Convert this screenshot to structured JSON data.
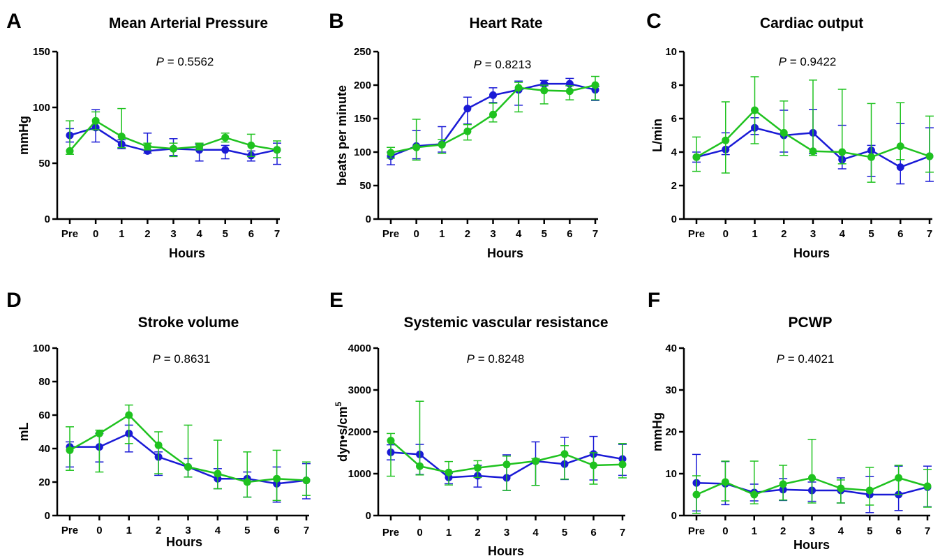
{
  "colors": {
    "series_blue": "#1a1ad6",
    "series_green": "#1fc21f",
    "axis": "#000000"
  },
  "chart_data": [
    {
      "panel": "A",
      "type": "line",
      "title": "Mean Arterial Pressure",
      "p_prefix": "P",
      "p_value": " = 0.5562",
      "xlabel": "Hours",
      "ylabel": "mmHg",
      "categories": [
        "Pre",
        "0",
        "1",
        "2",
        "3",
        "4",
        "5",
        "6",
        "7"
      ],
      "ylim": [
        0,
        150
      ],
      "yticks": [
        0,
        50,
        100,
        150
      ],
      "series": [
        {
          "color": "#1a1ad6",
          "values": [
            75,
            82,
            67,
            61,
            63,
            62,
            62,
            57,
            62
          ],
          "err_up": [
            6,
            16,
            4,
            16,
            9,
            5,
            4,
            4,
            6
          ],
          "err_down": [
            6,
            13,
            4,
            2,
            6,
            10,
            8,
            5,
            13
          ]
        },
        {
          "color": "#1fc21f",
          "values": [
            61,
            88,
            74,
            65,
            63,
            65,
            73,
            66,
            62
          ],
          "err_up": [
            27,
            8,
            25,
            3,
            5,
            3,
            4,
            10,
            8
          ],
          "err_down": [
            3,
            8,
            10,
            3,
            7,
            3,
            4,
            10,
            7
          ]
        }
      ]
    },
    {
      "panel": "B",
      "type": "line",
      "title": "Heart Rate",
      "p_prefix": "P",
      "p_value": " = 0.8213",
      "xlabel": "Hours",
      "ylabel": "beats per minute",
      "categories": [
        "Pre",
        "0",
        "1",
        "2",
        "3",
        "4",
        "5",
        "6",
        "7"
      ],
      "ylim": [
        0,
        250
      ],
      "yticks": [
        0,
        50,
        100,
        150,
        200,
        250
      ],
      "series": [
        {
          "color": "#1a1ad6",
          "values": [
            94,
            109,
            112,
            165,
            185,
            193,
            202,
            202,
            193
          ],
          "err_up": [
            6,
            23,
            26,
            17,
            11,
            13,
            5,
            8,
            5
          ],
          "err_down": [
            13,
            19,
            12,
            23,
            11,
            23,
            3,
            3,
            16
          ]
        },
        {
          "color": "#1fc21f",
          "values": [
            99,
            107,
            111,
            131,
            156,
            196,
            192,
            191,
            200
          ],
          "err_up": [
            8,
            42,
            8,
            10,
            17,
            8,
            8,
            8,
            13
          ],
          "err_down": [
            8,
            19,
            13,
            13,
            11,
            36,
            20,
            13,
            22
          ]
        }
      ]
    },
    {
      "panel": "C",
      "type": "line",
      "title": "Cardiac output",
      "p_prefix": "P",
      "p_value": " = 0.9422",
      "xlabel": "Hours",
      "ylabel": "L/min",
      "categories": [
        "Pre",
        "0",
        "1",
        "2",
        "3",
        "4",
        "5",
        "6",
        "7"
      ],
      "ylim": [
        0,
        10
      ],
      "yticks": [
        0,
        2,
        4,
        6,
        8,
        10
      ],
      "series": [
        {
          "color": "#1a1ad6",
          "values": [
            3.7,
            4.15,
            5.45,
            5.0,
            5.15,
            3.55,
            4.1,
            3.1,
            3.75
          ],
          "err_up": [
            0.3,
            1.0,
            0.6,
            1.5,
            1.4,
            2.05,
            0.3,
            2.6,
            1.7
          ],
          "err_down": [
            0.3,
            0.3,
            0.4,
            1.0,
            1.25,
            0.55,
            1.55,
            1.0,
            1.5
          ]
        },
        {
          "color": "#1fc21f",
          "values": [
            3.7,
            4.7,
            6.5,
            5.15,
            4.05,
            4.0,
            3.7,
            4.35,
            3.75
          ],
          "err_up": [
            1.2,
            2.3,
            2.0,
            1.9,
            4.25,
            3.75,
            3.2,
            2.6,
            2.4
          ],
          "err_down": [
            0.85,
            1.95,
            2.0,
            1.35,
            0.25,
            0.7,
            1.5,
            0.8,
            0.95
          ]
        }
      ]
    },
    {
      "panel": "D",
      "type": "line",
      "title": "Stroke volume",
      "p_prefix": "P",
      "p_value": " = 0.8631",
      "xlabel": "Hours",
      "ylabel": "mL",
      "categories": [
        "Pre",
        "0",
        "1",
        "2",
        "3",
        "4",
        "5",
        "6",
        "7"
      ],
      "ylim": [
        0,
        100
      ],
      "yticks": [
        0,
        20,
        40,
        60,
        80,
        100
      ],
      "series": [
        {
          "color": "#1a1ad6",
          "values": [
            41,
            41,
            49,
            35,
            29,
            22,
            22,
            19,
            21
          ],
          "err_up": [
            3,
            8,
            5,
            3,
            5,
            6,
            4,
            10,
            10
          ],
          "err_down": [
            12,
            9,
            11,
            11,
            6,
            6,
            11,
            11,
            11
          ]
        },
        {
          "color": "#1fc21f",
          "values": [
            39,
            49,
            60,
            42,
            29,
            25,
            20,
            22,
            21
          ],
          "err_up": [
            14,
            2,
            6,
            8,
            25,
            20,
            18,
            17,
            11
          ],
          "err_down": [
            12,
            23,
            17,
            17,
            6,
            9,
            9,
            13,
            9
          ]
        }
      ]
    },
    {
      "panel": "E",
      "type": "line",
      "title": "Systemic vascular resistance",
      "p_prefix": "P",
      "p_value": " = 0.8248",
      "xlabel": "Hours",
      "ylabel": "dyn•s/cm",
      "ylabel_sup": "5",
      "categories": [
        "Pre",
        "0",
        "1",
        "2",
        "3",
        "4",
        "5",
        "6",
        "7"
      ],
      "ylim": [
        0,
        4000
      ],
      "yticks": [
        0,
        1000,
        2000,
        3000,
        4000
      ],
      "series": [
        {
          "color": "#1a1ad6",
          "values": [
            1510,
            1460,
            910,
            950,
            900,
            1300,
            1230,
            1470,
            1350
          ],
          "err_up": [
            180,
            240,
            100,
            250,
            550,
            460,
            640,
            420,
            350
          ],
          "err_down": [
            180,
            480,
            150,
            270,
            300,
            580,
            370,
            620,
            390
          ]
        },
        {
          "color": "#1fc21f",
          "values": [
            1790,
            1180,
            1030,
            1140,
            1220,
            1300,
            1470,
            1200,
            1220
          ],
          "err_up": [
            170,
            1550,
            260,
            170,
            200,
            60,
            200,
            300,
            500
          ],
          "err_down": [
            850,
            210,
            300,
            230,
            620,
            580,
            600,
            450,
            320
          ]
        }
      ]
    },
    {
      "panel": "F",
      "type": "line",
      "title": "PCWP",
      "p_prefix": "P",
      "p_value": " = 0.4021",
      "xlabel": "Hours",
      "ylabel": "mmHg",
      "categories": [
        "Pre",
        "0",
        "1",
        "2",
        "3",
        "4",
        "5",
        "6",
        "7"
      ],
      "ylim": [
        0,
        40
      ],
      "yticks": [
        0,
        10,
        20,
        30,
        40
      ],
      "series": [
        {
          "color": "#1a1ad6",
          "values": [
            7.8,
            7.6,
            5.5,
            6.2,
            6.0,
            6.0,
            5.0,
            5.0,
            6.8
          ],
          "err_up": [
            6.8,
            5.3,
            2.0,
            2.6,
            2.0,
            3.0,
            4.3,
            6.8,
            5.0
          ],
          "err_down": [
            6.7,
            5.0,
            2.0,
            2.6,
            2.6,
            3.0,
            4.3,
            3.8,
            4.7
          ]
        },
        {
          "color": "#1fc21f",
          "values": [
            5.0,
            8.0,
            5.0,
            7.5,
            9.0,
            6.5,
            6.0,
            9.0,
            7.0
          ],
          "err_up": [
            4.5,
            5.0,
            8.0,
            4.5,
            9.2,
            2.0,
            5.5,
            3.0,
            4.0
          ],
          "err_down": [
            4.5,
            4.5,
            2.2,
            3.8,
            6.0,
            3.5,
            3.5,
            4.0,
            5.0
          ]
        }
      ]
    }
  ]
}
